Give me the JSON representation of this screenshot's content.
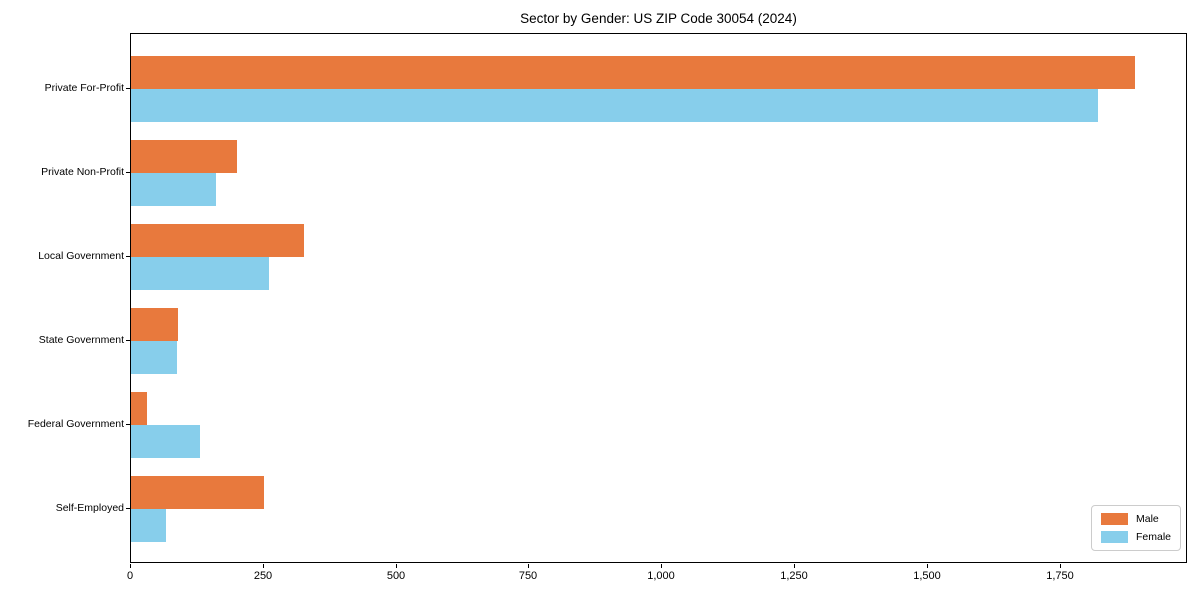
{
  "chart_data": {
    "type": "bar",
    "orientation": "horizontal",
    "title": "Sector by Gender: US ZIP Code 30054 (2024)",
    "xlabel": "",
    "ylabel": "",
    "grid": false,
    "legend_position": "lower right",
    "xlim": [
      0,
      1990
    ],
    "categories": [
      "Private For-Profit",
      "Private Non-Profit",
      "Local Government",
      "State Government",
      "Federal Government",
      "Self-Employed"
    ],
    "series": [
      {
        "name": "Male",
        "color": "#e8793d",
        "values": [
          1890,
          200,
          325,
          88,
          30,
          250
        ]
      },
      {
        "name": "Female",
        "color": "#87ceeb",
        "values": [
          1820,
          160,
          260,
          86,
          130,
          65
        ]
      }
    ],
    "x_ticks": [
      {
        "value": 0,
        "label": "0"
      },
      {
        "value": 250,
        "label": "250"
      },
      {
        "value": 500,
        "label": "500"
      },
      {
        "value": 750,
        "label": "750"
      },
      {
        "value": 1000,
        "label": "1,000"
      },
      {
        "value": 1250,
        "label": "1,250"
      },
      {
        "value": 1500,
        "label": "1,500"
      },
      {
        "value": 1750,
        "label": "1,750"
      }
    ]
  }
}
